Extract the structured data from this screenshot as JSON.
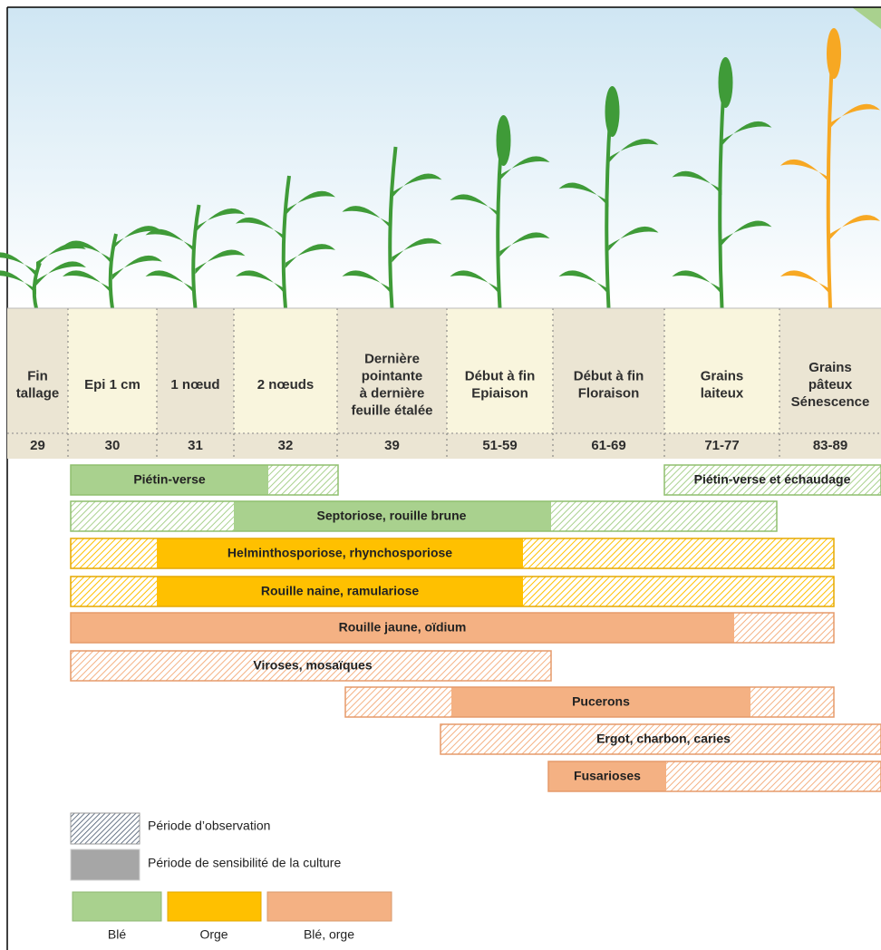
{
  "stages": [
    {
      "lines": [
        "Fin",
        "tallage"
      ],
      "code": "29"
    },
    {
      "lines": [
        "Epi 1 cm"
      ],
      "code": "30"
    },
    {
      "lines": [
        "1 nœud"
      ],
      "code": "31"
    },
    {
      "lines": [
        "2 nœuds"
      ],
      "code": "32"
    },
    {
      "lines": [
        "Dernière",
        "pointante",
        "à dernière",
        "feuille étalée"
      ],
      "code": "39"
    },
    {
      "lines": [
        "Début à fin",
        "Epiaison"
      ],
      "code": "51-59"
    },
    {
      "lines": [
        "Début à fin",
        "Floraison"
      ],
      "code": "61-69"
    },
    {
      "lines": [
        "Grains",
        "laiteux"
      ],
      "code": "71-77"
    },
    {
      "lines": [
        "Grains",
        "pâteux",
        "Sénescence"
      ],
      "code": "83-89"
    }
  ],
  "diseases": [
    "Piétin-verse",
    "Piétin-verse et échaudage",
    "Septoriose, rouille brune",
    "Helminthosporiose, rhynchosporiose",
    "Rouille naine, ramulariose",
    "Rouille jaune, oïdium",
    "Viroses, mosaïques",
    "Pucerons",
    "Ergot, charbon, caries",
    "Fusarioses"
  ],
  "legend": {
    "observation": "Période d’observation",
    "sensitivity": "Période de sensibilité de la culture"
  },
  "crops": [
    "Blé",
    "Orge",
    "Blé, orge"
  ]
}
